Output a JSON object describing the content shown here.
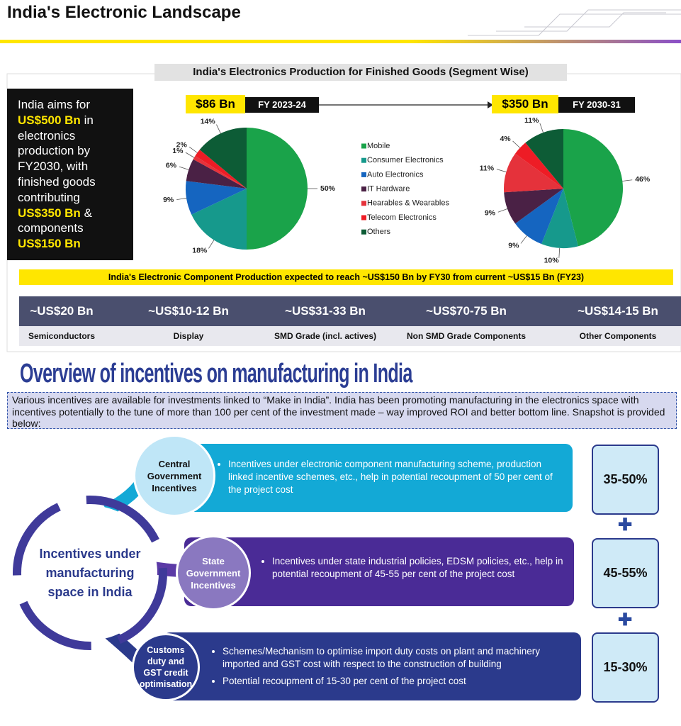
{
  "header": {
    "title": "India's Electronic Landscape"
  },
  "aim": [
    "India aims for",
    "US$500 Bn",
    "in electronics production by FY2030, with finished goods contributing",
    "US$350 Bn",
    "&",
    "components",
    "US$150 Bn"
  ],
  "chart_data": {
    "type": "pie",
    "title": "India's Electronics Production for Finished Goods (Segment Wise)",
    "categories": [
      "Mobile",
      "Consumer Electronics",
      "Auto Electronics",
      "IT Hardware",
      "Hearables & Wearables",
      "Telecom Electronics",
      "Others"
    ],
    "colors": [
      "#1aa34a",
      "#16998c",
      "#1565c0",
      "#4a2145",
      "#e5323b",
      "#ee1c25",
      "#0d5c36"
    ],
    "series": [
      {
        "name": "FY 2023-24",
        "total_label": "$86 Bn",
        "values": [
          50,
          18,
          9,
          6,
          1,
          2,
          14
        ],
        "value_labels": [
          "50%",
          "18%",
          "9%",
          "6%",
          "1%",
          "2%",
          "14%"
        ]
      },
      {
        "name": "FY 2030-31",
        "total_label": "$350 Bn",
        "values": [
          46,
          10,
          9,
          9,
          11,
          4,
          11
        ],
        "value_labels": [
          "46%",
          "10%",
          "9%",
          "9%",
          "11%",
          "4%",
          "11%"
        ]
      }
    ]
  },
  "components": {
    "banner": "India's Electronic Component Production expected to reach ~US$150 Bn by FY30 from current ~US$15 Bn (FY23)",
    "items": [
      {
        "amount": "~US$20 Bn",
        "label": "Semiconductors"
      },
      {
        "amount": "~US$10-12 Bn",
        "label": "Display"
      },
      {
        "amount": "~US$31-33 Bn",
        "label": "SMD Grade (incl. actives)"
      },
      {
        "amount": "~US$70-75 Bn",
        "label": "Non SMD Grade Components"
      },
      {
        "amount": "~US$14-15 Bn",
        "label": "Other Components"
      }
    ]
  },
  "incentives": {
    "title": "Overview of incentives on manufacturing in India",
    "intro": "Various incentives are available for investments linked to “Make in India”. India has been promoting manufacturing in the electronics space with incentives potentially to the tune of more than 100 per cent of the investment made – way improved ROI and better bottom line. Snapshot is provided below:",
    "hub": "Incentives under manufacturing space in India",
    "rows": [
      {
        "name": "Central Government Incentives",
        "points": [
          "Incentives under electronic component manufacturing scheme, production linked incentive schemes, etc., help in potential recoupment of 50 per cent of the project cost"
        ],
        "share": "35-50%"
      },
      {
        "name": "State Government Incentives",
        "points": [
          "Incentives under state industrial policies, EDSM policies, etc., help in potential recoupment of 45-55 per cent of the project cost"
        ],
        "share": "45-55%"
      },
      {
        "name": "Customs duty and GST credit optimisation",
        "points": [
          "Schemes/Mechanism to optimise import duty costs on plant and machinery imported and GST cost with respect to the construction of building",
          "Potential recoupment of 15-30 per cent of the project cost"
        ],
        "share": "15-30%"
      }
    ]
  }
}
